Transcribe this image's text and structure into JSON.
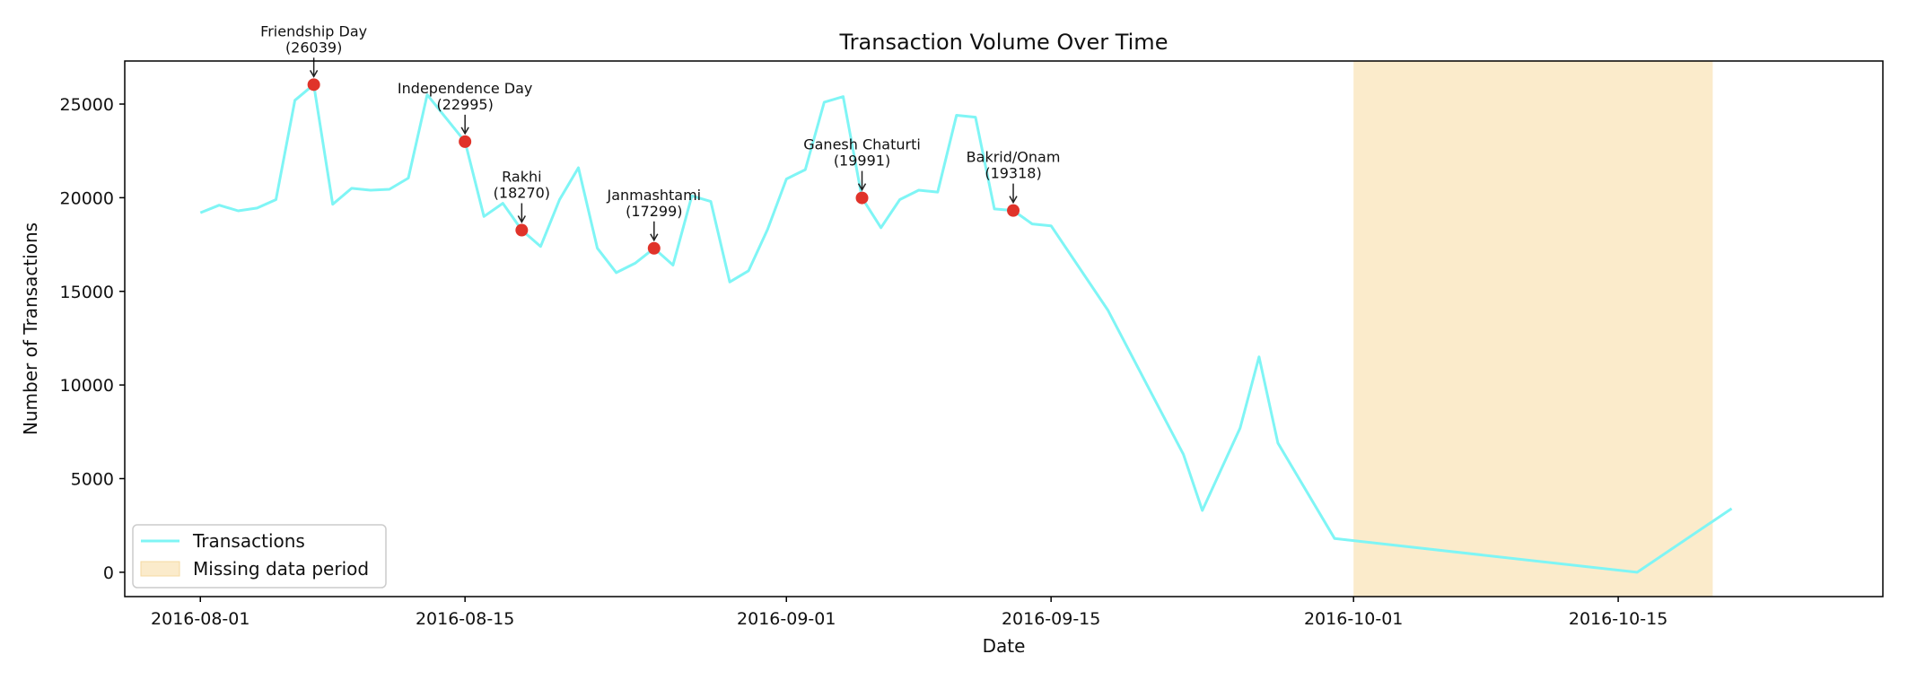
{
  "chart_data": {
    "type": "line",
    "title": "Transaction Volume Over Time",
    "xlabel": "Date",
    "ylabel": "Number of Transactions",
    "xlim": [
      "2016-07-28",
      "2016-10-29"
    ],
    "ylim": [
      -1300,
      27300
    ],
    "xticks": [
      "2016-08-01",
      "2016-08-15",
      "2016-09-01",
      "2016-09-15",
      "2016-10-01",
      "2016-10-15"
    ],
    "yticks": [
      0,
      5000,
      10000,
      15000,
      20000,
      25000
    ],
    "grid": false,
    "legend_position": "lower-left",
    "series": [
      {
        "name": "Transactions",
        "color": "#7ff5f5",
        "points": [
          [
            "2016-08-01",
            19200
          ],
          [
            "2016-08-02",
            19600
          ],
          [
            "2016-08-03",
            19300
          ],
          [
            "2016-08-04",
            19450
          ],
          [
            "2016-08-05",
            19900
          ],
          [
            "2016-08-06",
            25200
          ],
          [
            "2016-08-07",
            26039
          ],
          [
            "2016-08-08",
            19650
          ],
          [
            "2016-08-09",
            20500
          ],
          [
            "2016-08-10",
            20400
          ],
          [
            "2016-08-11",
            20450
          ],
          [
            "2016-08-12",
            21050
          ],
          [
            "2016-08-13",
            25500
          ],
          [
            "2016-08-15",
            22995
          ],
          [
            "2016-08-16",
            19000
          ],
          [
            "2016-08-17",
            19700
          ],
          [
            "2016-08-18",
            18270
          ],
          [
            "2016-08-19",
            17400
          ],
          [
            "2016-08-20",
            19900
          ],
          [
            "2016-08-21",
            21600
          ],
          [
            "2016-08-22",
            17300
          ],
          [
            "2016-08-23",
            16000
          ],
          [
            "2016-08-24",
            16500
          ],
          [
            "2016-08-25",
            17299
          ],
          [
            "2016-08-26",
            16400
          ],
          [
            "2016-08-27",
            20100
          ],
          [
            "2016-08-28",
            19800
          ],
          [
            "2016-08-29",
            15500
          ],
          [
            "2016-08-30",
            16100
          ],
          [
            "2016-08-31",
            18300
          ],
          [
            "2016-09-01",
            21000
          ],
          [
            "2016-09-02",
            21500
          ],
          [
            "2016-09-03",
            25100
          ],
          [
            "2016-09-04",
            25400
          ],
          [
            "2016-09-05",
            19991
          ],
          [
            "2016-09-06",
            18400
          ],
          [
            "2016-09-07",
            19900
          ],
          [
            "2016-09-08",
            20400
          ],
          [
            "2016-09-09",
            20300
          ],
          [
            "2016-09-10",
            24400
          ],
          [
            "2016-09-11",
            24300
          ],
          [
            "2016-09-12",
            19400
          ],
          [
            "2016-09-13",
            19318
          ],
          [
            "2016-09-14",
            18600
          ],
          [
            "2016-09-15",
            18500
          ],
          [
            "2016-09-18",
            14000
          ],
          [
            "2016-09-22",
            6300
          ],
          [
            "2016-09-23",
            3300
          ],
          [
            "2016-09-25",
            7700
          ],
          [
            "2016-09-26",
            11500
          ],
          [
            "2016-09-27",
            6900
          ],
          [
            "2016-09-30",
            1800
          ],
          [
            "2016-10-16",
            0
          ],
          [
            "2016-10-21",
            3400
          ]
        ]
      }
    ],
    "shaded_region": {
      "label": "Missing data period",
      "start": "2016-10-01",
      "end": "2016-10-20",
      "color": "#fbebcb"
    },
    "markers": {
      "color": "#e0332a",
      "items": [
        {
          "date": "2016-08-07",
          "value": 26039,
          "name": "Friendship Day",
          "value_label": "(26039)"
        },
        {
          "date": "2016-08-15",
          "value": 22995,
          "name": "Independence Day",
          "value_label": "(22995)"
        },
        {
          "date": "2016-08-18",
          "value": 18270,
          "name": "Rakhi",
          "value_label": "(18270)"
        },
        {
          "date": "2016-08-25",
          "value": 17299,
          "name": "Janmashtami",
          "value_label": "(17299)"
        },
        {
          "date": "2016-09-05",
          "value": 19991,
          "name": "Ganesh Chaturti",
          "value_label": "(19991)"
        },
        {
          "date": "2016-09-13",
          "value": 19318,
          "name": "Bakrid/Onam",
          "value_label": "(19318)"
        }
      ]
    }
  }
}
